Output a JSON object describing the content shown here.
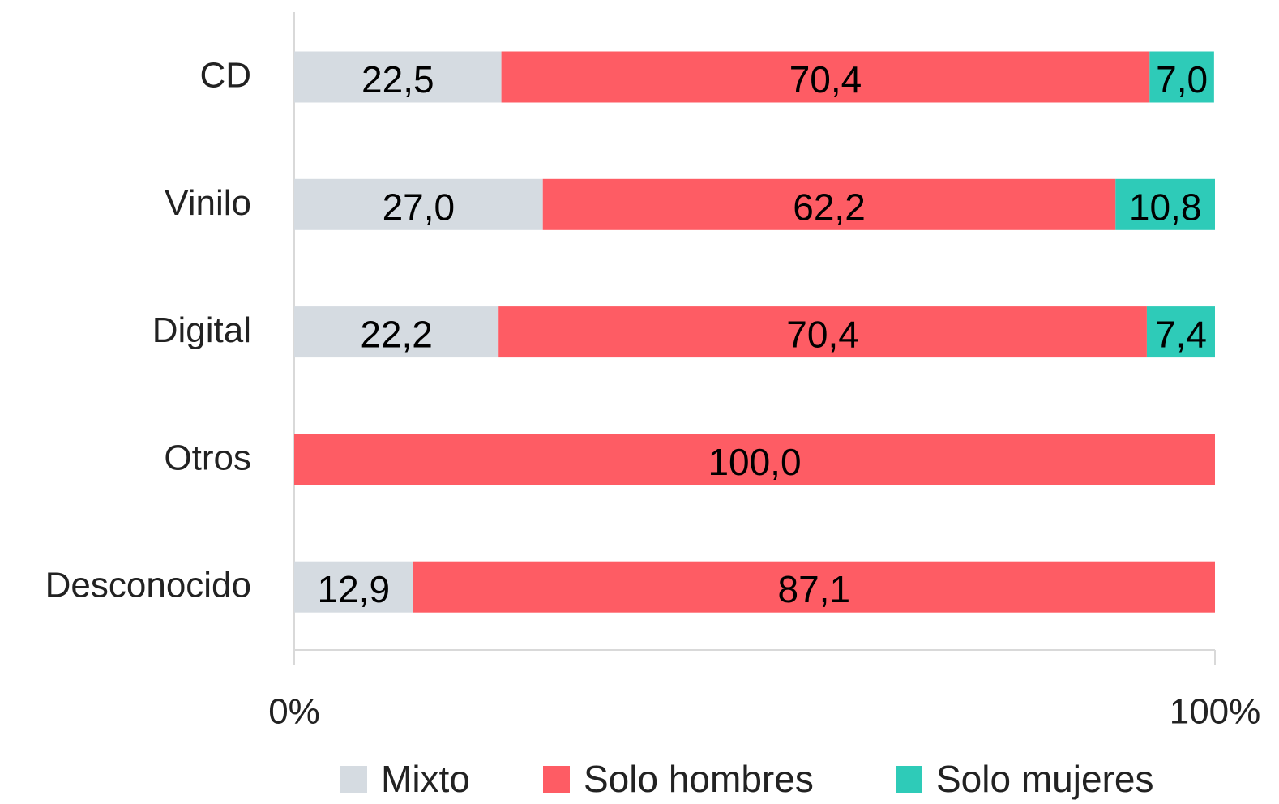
{
  "chart_data": {
    "type": "stacked-bar",
    "orientation": "horizontal",
    "categories": [
      "CD",
      "Vinilo",
      "Digital",
      "Otros",
      "Desconocido"
    ],
    "series": [
      {
        "name": "Mixto",
        "color": "#d5dbe1",
        "values": [
          22.5,
          27.0,
          22.2,
          null,
          12.9
        ],
        "value_labels": [
          "22,5",
          "27,0",
          "22,2",
          null,
          "12,9"
        ]
      },
      {
        "name": "Solo hombres",
        "color": "#fe5c64",
        "values": [
          70.4,
          62.2,
          70.4,
          100.0,
          87.1
        ],
        "value_labels": [
          "70,4",
          "62,2",
          "70,4",
          "100,0",
          "87,1"
        ]
      },
      {
        "name": "Solo mujeres",
        "color": "#2ecbb8",
        "values": [
          7.0,
          10.8,
          7.4,
          null,
          null
        ],
        "value_labels": [
          "7,0",
          "10,8",
          "7,4",
          null,
          null
        ]
      }
    ],
    "xlim": [
      0,
      100
    ],
    "xticks": [
      {
        "value": 0,
        "label": "0%"
      },
      {
        "value": 100,
        "label": "100%"
      }
    ],
    "legend": "bottom"
  }
}
